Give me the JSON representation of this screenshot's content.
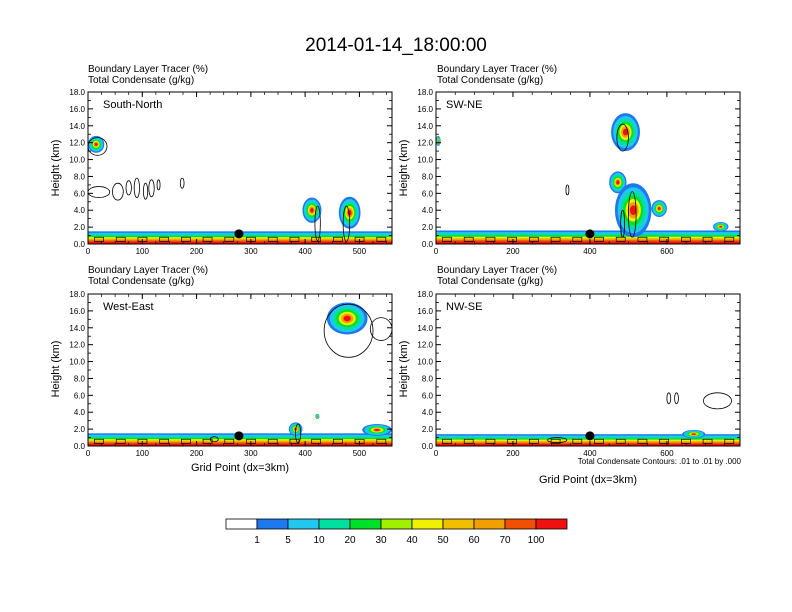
{
  "figure": {
    "title": "2014-01-14_18:00:00"
  },
  "colors": {
    "levels": [
      "#ffffff",
      "#1e78f0",
      "#20c8f0",
      "#00e0a0",
      "#00e028",
      "#a0f000",
      "#f0f000",
      "#f0c000",
      "#f0a000",
      "#f05000",
      "#f01010"
    ],
    "contour": "#000000",
    "marker": "#000000"
  },
  "colorbar": {
    "labels": [
      "1",
      "5",
      "10",
      "20",
      "30",
      "40",
      "50",
      "60",
      "70",
      "100"
    ]
  },
  "chart_data": [
    {
      "type": "heatmap",
      "name": "South-North",
      "header_lines": [
        "Boundary Layer Tracer   (%)",
        "Total Condensate   (g/kg)"
      ],
      "ylabel": "Height (km)",
      "xlabel": "",
      "xlim": [
        0,
        560
      ],
      "ylim": [
        0,
        18
      ],
      "xticks": [
        0,
        100,
        200,
        300,
        400,
        500
      ],
      "yticks": [
        "0.0",
        "2.0",
        "4.0",
        "6.0",
        "8.0",
        "10.0",
        "12.0",
        "14.0",
        "16.0",
        "18.0"
      ],
      "boundary_layer_top_km": 1.5,
      "marker_x": 278,
      "tracer_blobs": [
        {
          "x": [
            0,
            30
          ],
          "y": [
            10.8,
            12.8
          ]
        },
        {
          "x": [
            395,
            430
          ],
          "y": [
            2.5,
            5.5
          ]
        },
        {
          "x": [
            462,
            502
          ],
          "y": [
            1.8,
            5.6
          ]
        }
      ],
      "contours": [
        {
          "x": [
            0,
            35
          ],
          "y": [
            10.5,
            12.6
          ]
        },
        {
          "x": [
            0,
            40
          ],
          "y": [
            5.5,
            6.8
          ]
        },
        {
          "x": [
            45,
            65
          ],
          "y": [
            5.2,
            7.2
          ]
        },
        {
          "x": [
            70,
            80
          ],
          "y": [
            5.8,
            7.5
          ]
        },
        {
          "x": [
            85,
            95
          ],
          "y": [
            5.5,
            7.8
          ]
        },
        {
          "x": [
            102,
            110
          ],
          "y": [
            5.3,
            7.2
          ]
        },
        {
          "x": [
            112,
            122
          ],
          "y": [
            5.6,
            7.6
          ]
        },
        {
          "x": [
            128,
            132
          ],
          "y": [
            6.4,
            7.6
          ]
        },
        {
          "x": [
            170,
            177
          ],
          "y": [
            6.6,
            7.8
          ]
        },
        {
          "x": [
            418,
            428
          ],
          "y": [
            0.4,
            4.5
          ]
        },
        {
          "x": [
            470,
            482
          ],
          "y": [
            0.3,
            4.5
          ]
        }
      ]
    },
    {
      "type": "heatmap",
      "name": "SW-NE",
      "header_lines": [
        "Boundary Layer Tracer   (%)",
        "Total Condensate   (g/kg)"
      ],
      "ylabel": "Height (km)",
      "xlabel": "",
      "xlim": [
        0,
        790
      ],
      "ylim": [
        0,
        18
      ],
      "xticks": [
        0,
        200,
        400,
        600
      ],
      "yticks": [
        "0.0",
        "2.0",
        "4.0",
        "6.0",
        "8.0",
        "10.0",
        "12.0",
        "14.0",
        "16.0",
        "18.0"
      ],
      "boundary_layer_top_km": 1.6,
      "marker_x": 400,
      "tracer_blobs": [
        {
          "x": [
            0,
            12
          ],
          "y": [
            11.6,
            12.8
          ]
        },
        {
          "x": [
            455,
            530
          ],
          "y": [
            11.0,
            15.5
          ]
        },
        {
          "x": [
            450,
            495
          ],
          "y": [
            6.0,
            8.6
          ]
        },
        {
          "x": [
            465,
            560
          ],
          "y": [
            0.8,
            7.2
          ]
        },
        {
          "x": [
            560,
            600
          ],
          "y": [
            3.2,
            5.2
          ]
        },
        {
          "x": [
            720,
            760
          ],
          "y": [
            1.5,
            2.6
          ]
        }
      ],
      "contours": [
        {
          "x": [
            470,
            500
          ],
          "y": [
            11.0,
            14.2
          ]
        },
        {
          "x": [
            338,
            345
          ],
          "y": [
            5.8,
            7.0
          ]
        },
        {
          "x": [
            500,
            520
          ],
          "y": [
            0.8,
            6.2
          ]
        },
        {
          "x": [
            480,
            490
          ],
          "y": [
            0.8,
            4.0
          ]
        }
      ]
    },
    {
      "type": "heatmap",
      "name": "West-East",
      "header_lines": [
        "Boundary Layer Tracer   (%)",
        "Total Condensate   (g/kg)"
      ],
      "ylabel": "Height (km)",
      "xlabel": "Grid Point (dx=3km)",
      "xlim": [
        0,
        560
      ],
      "ylim": [
        0,
        18
      ],
      "xticks": [
        0,
        100,
        200,
        300,
        400,
        500
      ],
      "yticks": [
        "0.0",
        "2.0",
        "4.0",
        "6.0",
        "8.0",
        "10.0",
        "12.0",
        "14.0",
        "16.0",
        "18.0"
      ],
      "boundary_layer_top_km": 1.5,
      "marker_x": 278,
      "tracer_blobs": [
        {
          "x": [
            440,
            515
          ],
          "y": [
            13.2,
            17.0
          ]
        },
        {
          "x": [
            420,
            425
          ],
          "y": [
            3.2,
            3.8
          ]
        },
        {
          "x": [
            370,
            395
          ],
          "y": [
            1.2,
            2.8
          ]
        },
        {
          "x": [
            505,
            560
          ],
          "y": [
            1.2,
            2.6
          ]
        }
      ],
      "contours": [
        {
          "x": [
            435,
            525
          ],
          "y": [
            10.5,
            16.8
          ]
        },
        {
          "x": [
            520,
            560
          ],
          "y": [
            12.5,
            15.2
          ]
        },
        {
          "x": [
            382,
            392
          ],
          "y": [
            0.4,
            2.6
          ]
        },
        {
          "x": [
            225,
            240
          ],
          "y": [
            0.5,
            1.1
          ]
        }
      ]
    },
    {
      "type": "heatmap",
      "name": "NW-SE",
      "header_lines": [
        "Boundary Layer Tracer   (%)",
        "Total Condensate   (g/kg)"
      ],
      "ylabel": "Height (km)",
      "xlabel": "Grid Point (dx=3km)",
      "xlim": [
        0,
        790
      ],
      "ylim": [
        0,
        18
      ],
      "xticks": [
        0,
        200,
        400,
        600
      ],
      "yticks": [
        "0.0",
        "2.0",
        "4.0",
        "6.0",
        "8.0",
        "10.0",
        "12.0",
        "14.0",
        "16.0",
        "18.0"
      ],
      "boundary_layer_top_km": 1.4,
      "marker_x": 400,
      "note": "Total Condensate Contours: .01 to .01 by .000",
      "tracer_blobs": [
        {
          "x": [
            640,
            700
          ],
          "y": [
            0.9,
            1.9
          ]
        }
      ],
      "contours": [
        {
          "x": [
            600,
            610
          ],
          "y": [
            5.0,
            6.3
          ]
        },
        {
          "x": [
            620,
            630
          ],
          "y": [
            5.0,
            6.3
          ]
        },
        {
          "x": [
            695,
            768
          ],
          "y": [
            4.4,
            6.3
          ]
        },
        {
          "x": [
            290,
            340
          ],
          "y": [
            0.4,
            1.0
          ]
        }
      ]
    }
  ]
}
